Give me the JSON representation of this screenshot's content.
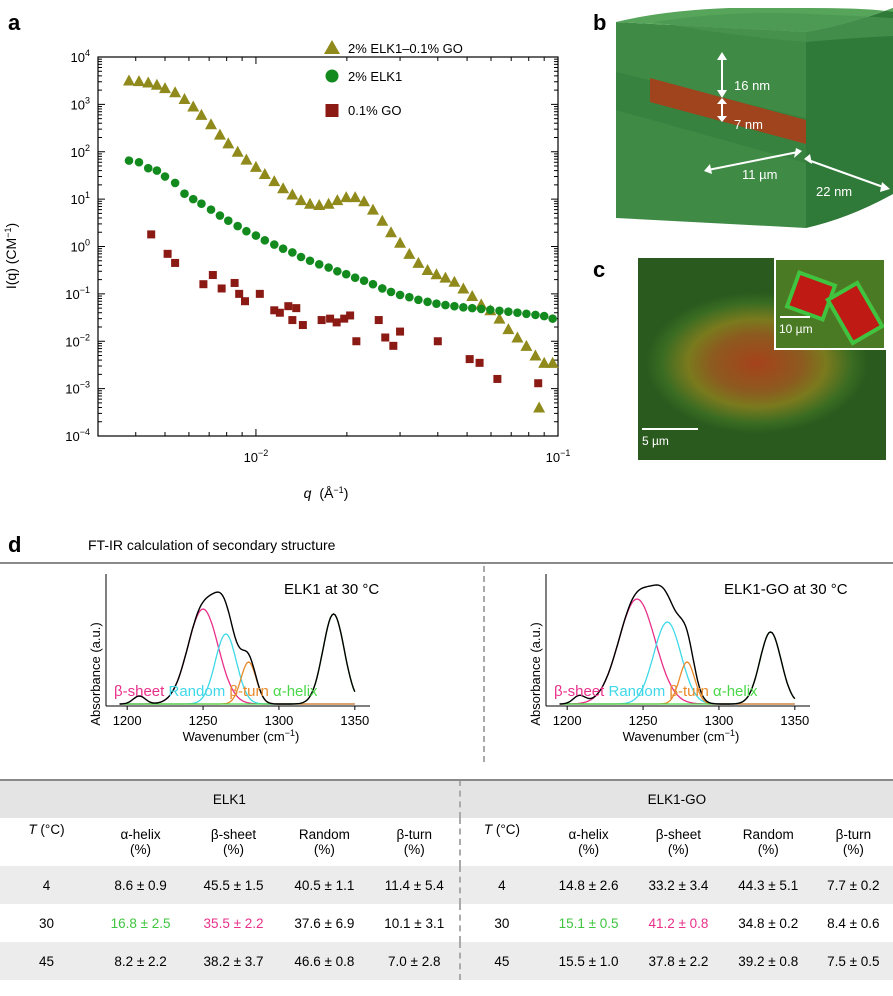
{
  "panels": {
    "a": "a",
    "b": "b",
    "c": "c",
    "d": "d"
  },
  "panel_a": {
    "ylabel": "I(q) (CM",
    "ylabel_sup": "−1",
    "ylabel_end": ")",
    "xlabel": "q",
    "xunit": "(Å",
    "xunit_sup": "−1",
    "xunit_end": ")",
    "yticks": [
      {
        "base": "10",
        "exp": "4"
      },
      {
        "base": "10",
        "exp": "3"
      },
      {
        "base": "10",
        "exp": "2"
      },
      {
        "base": "10",
        "exp": "1"
      },
      {
        "base": "10",
        "exp": "0"
      },
      {
        "base": "10",
        "exp": "−1"
      },
      {
        "base": "10",
        "exp": "−2"
      },
      {
        "base": "10",
        "exp": "−3"
      },
      {
        "base": "10",
        "exp": "−4"
      }
    ],
    "xticks": [
      {
        "base": "10",
        "exp": "−2"
      },
      {
        "base": "10",
        "exp": "−1"
      }
    ],
    "legend": [
      "2% ELK1–0.1% GO",
      "2% ELK1",
      "0.1% GO"
    ],
    "colors": {
      "elk1go": "#8f8a1b",
      "elk1": "#138a1e",
      "go": "#8b1a14"
    }
  },
  "chart_data": {
    "type": "scatter",
    "xscale": "log",
    "yscale": "log",
    "xlim": [
      0.003,
      0.1
    ],
    "ylim": [
      0.0001,
      10000
    ],
    "xlabel": "q (Å−1)",
    "ylabel": "I(q) (CM−1)",
    "legend_position": "top-right",
    "series": [
      {
        "name": "2% ELK1–0.1% GO",
        "marker": "triangle",
        "points": [
          [
            0.0038,
            3200
          ],
          [
            0.0041,
            3100
          ],
          [
            0.0044,
            2900
          ],
          [
            0.0047,
            2600
          ],
          [
            0.005,
            2200
          ],
          [
            0.0054,
            1800
          ],
          [
            0.0058,
            1300
          ],
          [
            0.0062,
            900
          ],
          [
            0.0066,
            600
          ],
          [
            0.0071,
            380
          ],
          [
            0.0076,
            230
          ],
          [
            0.0081,
            150
          ],
          [
            0.0087,
            100
          ],
          [
            0.0093,
            68
          ],
          [
            0.01,
            48
          ],
          [
            0.0107,
            34
          ],
          [
            0.0115,
            24
          ],
          [
            0.0123,
            17
          ],
          [
            0.0132,
            12.5
          ],
          [
            0.0141,
            9.5
          ],
          [
            0.0151,
            8
          ],
          [
            0.0162,
            7.5
          ],
          [
            0.0174,
            8
          ],
          [
            0.0186,
            9.5
          ],
          [
            0.0199,
            11
          ],
          [
            0.0213,
            11
          ],
          [
            0.0228,
            9
          ],
          [
            0.0244,
            6
          ],
          [
            0.0262,
            3.5
          ],
          [
            0.028,
            2
          ],
          [
            0.03,
            1.2
          ],
          [
            0.0322,
            0.7
          ],
          [
            0.0345,
            0.45
          ],
          [
            0.037,
            0.32
          ],
          [
            0.0396,
            0.26
          ],
          [
            0.0424,
            0.22
          ],
          [
            0.0454,
            0.18
          ],
          [
            0.0486,
            0.13
          ],
          [
            0.052,
            0.09
          ],
          [
            0.0557,
            0.06
          ],
          [
            0.0597,
            0.045
          ],
          [
            0.064,
            0.03
          ],
          [
            0.0685,
            0.018
          ],
          [
            0.0734,
            0.012
          ],
          [
            0.0786,
            0.008
          ],
          [
            0.0842,
            0.005
          ],
          [
            0.09,
            0.0035
          ],
          [
            0.0866,
            0.0004
          ],
          [
            0.096,
            0.0035
          ]
        ]
      },
      {
        "name": "2% ELK1",
        "marker": "circle",
        "points": [
          [
            0.0038,
            65
          ],
          [
            0.0041,
            60
          ],
          [
            0.0044,
            45
          ],
          [
            0.0047,
            40
          ],
          [
            0.005,
            30
          ],
          [
            0.0054,
            22
          ],
          [
            0.0058,
            13
          ],
          [
            0.0062,
            10
          ],
          [
            0.0066,
            8
          ],
          [
            0.0071,
            6
          ],
          [
            0.0076,
            4.5
          ],
          [
            0.0081,
            3.5
          ],
          [
            0.0087,
            2.7
          ],
          [
            0.0093,
            2.1
          ],
          [
            0.01,
            1.7
          ],
          [
            0.0107,
            1.35
          ],
          [
            0.0115,
            1.1
          ],
          [
            0.0123,
            0.9
          ],
          [
            0.0132,
            0.75
          ],
          [
            0.0141,
            0.6
          ],
          [
            0.0151,
            0.5
          ],
          [
            0.0162,
            0.42
          ],
          [
            0.0174,
            0.36
          ],
          [
            0.0186,
            0.3
          ],
          [
            0.0199,
            0.26
          ],
          [
            0.0213,
            0.22
          ],
          [
            0.0228,
            0.19
          ],
          [
            0.0244,
            0.16
          ],
          [
            0.0262,
            0.13
          ],
          [
            0.028,
            0.11
          ],
          [
            0.03,
            0.095
          ],
          [
            0.0322,
            0.085
          ],
          [
            0.0345,
            0.075
          ],
          [
            0.037,
            0.068
          ],
          [
            0.0396,
            0.062
          ],
          [
            0.0424,
            0.058
          ],
          [
            0.0454,
            0.055
          ],
          [
            0.0486,
            0.052
          ],
          [
            0.052,
            0.05
          ],
          [
            0.0557,
            0.048
          ],
          [
            0.0597,
            0.046
          ],
          [
            0.064,
            0.044
          ],
          [
            0.0685,
            0.042
          ],
          [
            0.0734,
            0.04
          ],
          [
            0.0786,
            0.038
          ],
          [
            0.0842,
            0.036
          ],
          [
            0.09,
            0.034
          ],
          [
            0.096,
            0.03
          ]
        ]
      },
      {
        "name": "0.1% GO",
        "marker": "square",
        "points": [
          [
            0.0045,
            1.8
          ],
          [
            0.0051,
            0.7
          ],
          [
            0.0054,
            0.45
          ],
          [
            0.0067,
            0.16
          ],
          [
            0.0072,
            0.25
          ],
          [
            0.0077,
            0.13
          ],
          [
            0.0085,
            0.17
          ],
          [
            0.0088,
            0.1
          ],
          [
            0.0092,
            0.07
          ],
          [
            0.0103,
            0.1
          ],
          [
            0.0115,
            0.045
          ],
          [
            0.012,
            0.04
          ],
          [
            0.0128,
            0.055
          ],
          [
            0.0132,
            0.028
          ],
          [
            0.0136,
            0.05
          ],
          [
            0.0143,
            0.022
          ],
          [
            0.0165,
            0.028
          ],
          [
            0.0176,
            0.03
          ],
          [
            0.0185,
            0.025
          ],
          [
            0.0196,
            0.03
          ],
          [
            0.0205,
            0.035
          ],
          [
            0.0215,
            0.01
          ],
          [
            0.0255,
            0.028
          ],
          [
            0.0268,
            0.012
          ],
          [
            0.0285,
            0.008
          ],
          [
            0.03,
            0.016
          ],
          [
            0.04,
            0.01
          ],
          [
            0.051,
            0.0042
          ],
          [
            0.055,
            0.0035
          ],
          [
            0.063,
            0.0016
          ],
          [
            0.086,
            0.0013
          ]
        ]
      }
    ]
  },
  "panel_b": {
    "labels": [
      "16 nm",
      "7 nm",
      "11 µm",
      "22 nm"
    ]
  },
  "panel_c": {
    "scale_main": "5 µm",
    "scale_inset": "10 µm"
  },
  "panel_d": {
    "title": "FT-IR calculation of secondary structure",
    "left_plot_title": "ELK1 at 30 °C",
    "right_plot_title": "ELK1-GO at 30 °C",
    "ylabel": "Absorbance (a.u.)",
    "xlabel": "Wavenumber (cm",
    "xlabel_sup": "−1",
    "xlabel_end": ")",
    "xticks": [
      "1200",
      "1250",
      "1300",
      "1350"
    ],
    "comp_labels": [
      "β-sheet",
      "Random",
      "β-turn",
      "α-helix"
    ],
    "comp_colors": [
      "#e8308a",
      "#3fd8e8",
      "#e88a2a",
      "#4ad84a"
    ],
    "table": {
      "group_left": "ELK1",
      "group_right": "ELK1-GO",
      "col_T": "T (°C)",
      "headers": [
        [
          "α-helix",
          "(%)"
        ],
        [
          "β-sheet",
          "(%)"
        ],
        [
          "Random",
          "(%)"
        ],
        [
          "β-turn",
          "(%)"
        ]
      ],
      "rows": [
        {
          "T": "4",
          "left": [
            "8.6 ± 0.9",
            "45.5 ± 1.5",
            "40.5 ± 1.1",
            "11.4 ± 5.4"
          ],
          "right": [
            "14.8 ± 2.6",
            "33.2 ± 3.4",
            "44.3 ± 5.1",
            "7.7 ± 0.2"
          ]
        },
        {
          "T": "30",
          "left": [
            "16.8 ± 2.5",
            "35.5 ± 2.2",
            "37.6 ± 6.9",
            "10.1 ± 3.1"
          ],
          "right": [
            "15.1 ± 0.5",
            "41.2 ± 0.8",
            "34.8 ± 0.2",
            "8.4 ± 0.6"
          ]
        },
        {
          "T": "45",
          "left": [
            "8.2 ±  2.2",
            "38.2 ± 3.7",
            "46.6 ± 0.8",
            "7.0 ± 2.8"
          ],
          "right": [
            "15.5 ± 1.0",
            "37.8 ± 2.2",
            "39.2 ± 0.8",
            "7.5 ± 0.5"
          ]
        }
      ]
    }
  }
}
